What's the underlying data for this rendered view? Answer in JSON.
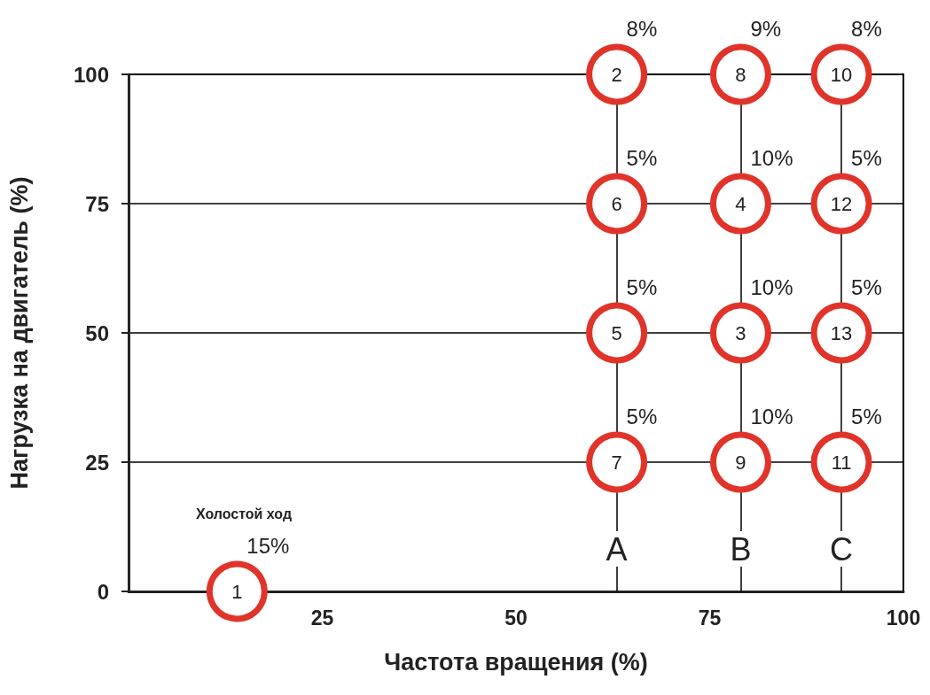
{
  "chart_data": {
    "type": "scatter",
    "xlabel": "Частота вращения (%)",
    "ylabel": "Нагрузка на двигатель (%)",
    "xlim": [
      0,
      100
    ],
    "xticks": [
      25,
      50,
      75,
      100
    ],
    "ylim": [
      0,
      100
    ],
    "yticks": [
      0,
      25,
      50,
      75,
      100
    ],
    "grid": "y",
    "marker": "circle",
    "series": [
      {
        "color": "#e0342b",
        "x": [
          14
        ],
        "values": [
          0
        ]
      },
      {
        "color": "#e0342b",
        "x": [
          63,
          63,
          63,
          63,
          79,
          79,
          79,
          79,
          92,
          92,
          92,
          92
        ],
        "values": [
          25,
          50,
          75,
          100,
          25,
          50,
          75,
          100,
          25,
          50,
          75,
          100
        ]
      }
    ],
    "ref_lines": [
      {
        "axis": "x",
        "value": 63,
        "label": "A"
      },
      {
        "axis": "x",
        "value": 79,
        "label": "B"
      },
      {
        "axis": "x",
        "value": 92,
        "label": "C"
      }
    ],
    "annotations": [
      {
        "text": "1",
        "x": 14,
        "y": 0
      },
      {
        "text": "7",
        "x": 63,
        "y": 25
      },
      {
        "text": "5",
        "x": 63,
        "y": 50
      },
      {
        "text": "6",
        "x": 63,
        "y": 75
      },
      {
        "text": "2",
        "x": 63,
        "y": 100
      },
      {
        "text": "9",
        "x": 79,
        "y": 25
      },
      {
        "text": "3",
        "x": 79,
        "y": 50
      },
      {
        "text": "4",
        "x": 79,
        "y": 75
      },
      {
        "text": "8",
        "x": 79,
        "y": 100
      },
      {
        "text": "11",
        "x": 92,
        "y": 25
      },
      {
        "text": "13",
        "x": 92,
        "y": 50
      },
      {
        "text": "12",
        "x": 92,
        "y": 75
      },
      {
        "text": "10",
        "x": 92,
        "y": 100
      },
      {
        "text": "15%",
        "x": 14,
        "y": 0
      },
      "Холостой ход",
      {
        "text": "5%",
        "x": 63,
        "y": 25
      },
      {
        "text": "5%",
        "x": 63,
        "y": 50
      },
      {
        "text": "5%",
        "x": 63,
        "y": 75
      },
      {
        "text": "8%",
        "x": 63,
        "y": 100
      },
      {
        "text": "10%",
        "x": 79,
        "y": 25
      },
      {
        "text": "10%",
        "x": 79,
        "y": 50
      },
      {
        "text": "10%",
        "x": 79,
        "y": 75
      },
      {
        "text": "9%",
        "x": 79,
        "y": 100
      },
      {
        "text": "5%",
        "x": 92,
        "y": 25
      },
      {
        "text": "5%",
        "x": 92,
        "y": 50
      },
      {
        "text": "5%",
        "x": 92,
        "y": 75
      },
      {
        "text": "8%",
        "x": 92,
        "y": 100
      }
    ]
  }
}
